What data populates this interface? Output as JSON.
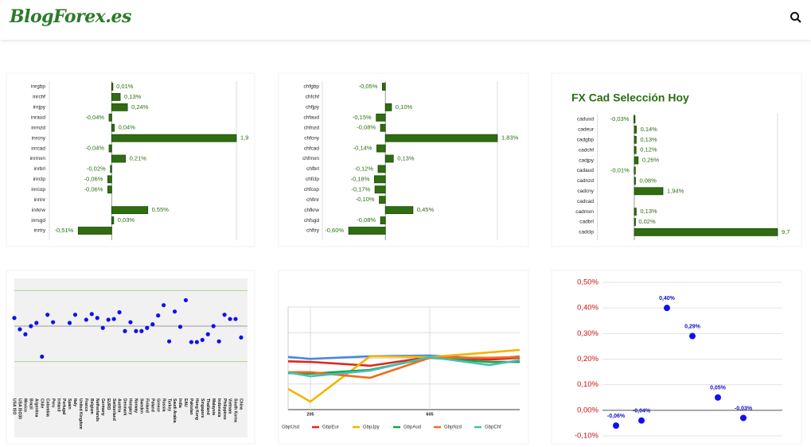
{
  "header": {
    "logo": "BlogForex.es"
  },
  "chart_data": [
    {
      "type": "hbar",
      "color": "#2f6d10",
      "categories": [
        "inrgbp",
        "inrchf",
        "inrjpy",
        "inraud",
        "inrnzd",
        "inrcny",
        "inrcad",
        "inrmxn",
        "inrbrl",
        "inrclp",
        "inrcop",
        "inrinr",
        "inrkrw",
        "inrsgd",
        "inrtry"
      ],
      "values": [
        0.01,
        0.13,
        0.24,
        -0.04,
        0.04,
        1.9,
        -0.04,
        0.21,
        -0.02,
        -0.06,
        -0.06,
        null,
        0.55,
        0.03,
        -0.51
      ],
      "value_labels": [
        "0,01%",
        "0,13%",
        "0,24%",
        "-0,04%",
        "0,04%",
        "1,9",
        "-0,04%",
        "0,21%",
        "-0,02%",
        "-0,06%",
        "-0,06%",
        null,
        "0,55%",
        "0,03%",
        "-0,51%"
      ],
      "xlim": [
        -0.95,
        1.9
      ]
    },
    {
      "type": "hbar",
      "color": "#2f6d10",
      "categories": [
        "chfgbp",
        "chfchf",
        "chfjpy",
        "chfaud",
        "chfnzd",
        "chfcny",
        "chfcad",
        "chfmxn",
        "chfbrl",
        "chfclp",
        "chfcop",
        "chfinr",
        "chfkrw",
        "chfsgd",
        "chftry"
      ],
      "values": [
        -0.05,
        null,
        0.1,
        -0.15,
        -0.08,
        1.83,
        -0.14,
        0.13,
        -0.12,
        -0.18,
        -0.17,
        -0.1,
        0.45,
        -0.08,
        -0.6
      ],
      "value_labels": [
        "-0,05%",
        null,
        "0,10%",
        "-0,15%",
        "-0,08%",
        "1,83%",
        "-0,14%",
        "0,13%",
        "-0,12%",
        "-0,18%",
        "-0,17%",
        "-0,10%",
        "0,45%",
        "-0,08%",
        "-0,60%"
      ],
      "xlim": [
        -1.03,
        1.83
      ]
    },
    {
      "type": "hbar",
      "color": "#2f6d10",
      "title": "FX Cad Selección Hoy",
      "categories": [
        "cadusd",
        "cadeur",
        "cadgbp",
        "cadchf",
        "cadjpy",
        "cadaud",
        "cadnzd",
        "cadcny",
        "cadcad",
        "cadmxn",
        "cadbrl",
        "cadclp"
      ],
      "values": [
        -0.03,
        0.14,
        0.13,
        0.12,
        0.26,
        -0.01,
        0.08,
        1.94,
        null,
        0.13,
        0.02,
        9.7
      ],
      "value_labels": [
        "-0,03%",
        "0,14%",
        "0,13%",
        "0,12%",
        "0,26%",
        "-0,01%",
        "0,08%",
        "1,94%",
        null,
        "0,13%",
        "0,02%",
        "9,7"
      ],
      "xlim": [
        -2.5,
        9.7
      ]
    },
    {
      "type": "dot",
      "color": "#1010ee",
      "grid": true,
      "categories": [
        "USA ISO",
        "USA ISO30",
        "Mexico",
        "Brazil",
        "Argentina",
        "Chile",
        "Colombia",
        "Peru",
        "Ireland",
        "Portugal",
        "Spain",
        "Italy",
        "United Kingdom",
        "France",
        "Belgium",
        "Netherlands",
        "Germany",
        "EURO",
        "Switzerland",
        "Austria",
        "Denmark",
        "Hungary",
        "Norway",
        "Sweden",
        "Finland",
        "Poland",
        "Greece",
        "Russia",
        "Turkey",
        "Saudi Arabia",
        "India",
        "EAU",
        "Pakistan",
        "Hong Kong",
        "Singapore",
        "Thailand",
        "Malaysia",
        "Indonesia",
        "Philippines",
        "Vietnam",
        "South Korea",
        "China"
      ],
      "values": [
        0.23,
        -0.09,
        -0.23,
        0,
        0.09,
        -0.86,
        0.32,
        0.11,
        null,
        null,
        0.09,
        0.32,
        null,
        0.18,
        0.34,
        0.23,
        -0.05,
        0.18,
        0.2,
        0.39,
        -0.14,
        0.11,
        -0.14,
        -0.14,
        -0.05,
        0.05,
        0.3,
        0.59,
        -0.43,
        0.41,
        -0.02,
        0.73,
        -0.45,
        -0.45,
        -0.39,
        -0.23,
        0,
        -0.43,
        0.32,
        0.2,
        0.2,
        -0.32
      ],
      "ylim": [
        -1.95,
        1.3
      ]
    },
    {
      "type": "line",
      "grid": true,
      "categories": [
        null,
        "205",
        null,
        "605",
        null,
        null
      ],
      "series": [
        {
          "name": "GbpUsd",
          "color": "#4a86e8",
          "values": [
            2.17,
            1.98,
            2.08,
            2.11,
            1.98,
            2.17
          ]
        },
        {
          "name": "GbpEur",
          "color": "#e0261b",
          "values": [
            1.92,
            1.86,
            1.71,
            2.05,
            1.95,
            2.08
          ]
        },
        {
          "name": "GbpJpy",
          "color": "#f4b400",
          "values": [
            1.64,
            0.31,
            2.08,
            2.05,
            2.23,
            2.42
          ]
        },
        {
          "name": "GbpAud",
          "color": "#1e9e4a",
          "values": [
            1.46,
            1.4,
            1.55,
            2.02,
            1.86,
            1.86
          ]
        },
        {
          "name": "GbpNzd",
          "color": "#f26b1d",
          "values": [
            1.46,
            1.46,
            1.24,
            2.02,
            2.02,
            2.08
          ]
        },
        {
          "name": "GbpChf",
          "color": "#3fc1b5",
          "values": [
            1.71,
            1.3,
            1.52,
            2.05,
            1.74,
            2.11
          ]
        }
      ],
      "ylim": [
        0,
        4
      ]
    },
    {
      "type": "dot",
      "color": "#1010ee",
      "values": [
        -0.06,
        -0.04,
        0.4,
        0.29,
        0.05,
        -0.03
      ],
      "value_labels": [
        "-0,06%",
        "-0,04%",
        "0,40%",
        "0,29%",
        "0,05%",
        "-0,03%"
      ],
      "ylim": [
        -0.1,
        0.5
      ],
      "yticks": [
        {
          "value": 0.5,
          "label": "0,50%"
        },
        {
          "value": 0.4,
          "label": "0,40%"
        },
        {
          "value": 0.3,
          "label": "0,30%"
        },
        {
          "value": 0.2,
          "label": "0,20%"
        },
        {
          "value": 0.1,
          "label": "0,10%"
        },
        {
          "value": 0,
          "label": "0,00%"
        },
        {
          "value": -0.1,
          "label": "-0,10%"
        }
      ]
    }
  ]
}
